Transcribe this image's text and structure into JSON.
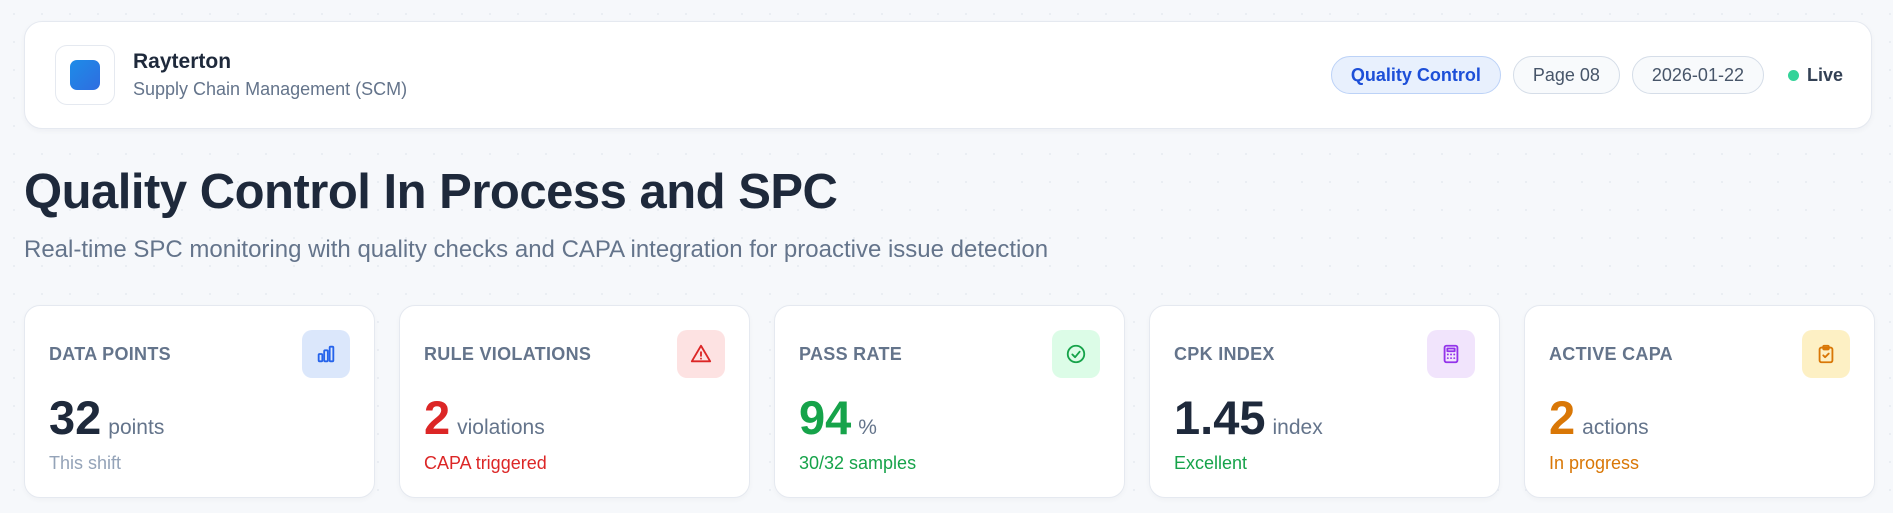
{
  "header": {
    "brand_name": "Rayterton",
    "brand_subtitle": "Supply Chain Management (SCM)",
    "pills": [
      "Quality Control",
      "Page 08",
      "2026-01-22"
    ],
    "live_label": "Live"
  },
  "page": {
    "title": "Quality Control In Process and SPC",
    "subtitle": "Real-time SPC monitoring with quality checks and CAPA integration for proactive issue detection"
  },
  "cards": [
    {
      "label": "DATA POINTS",
      "value": "32",
      "unit": "points",
      "note": "This shift",
      "icon": "bar-chart-icon",
      "value_color": "#1e293b",
      "note_color": "#94a3b8",
      "icon_bg": "#dbe7fb",
      "icon_color": "#2563eb"
    },
    {
      "label": "RULE VIOLATIONS",
      "value": "2",
      "unit": "violations",
      "note": "CAPA triggered",
      "icon": "warning-triangle-icon",
      "value_color": "#dc2626",
      "note_color": "#dc2626",
      "icon_bg": "#fde2e2",
      "icon_color": "#dc2626"
    },
    {
      "label": "PASS RATE",
      "value": "94",
      "unit": "%",
      "note": "30/32 samples",
      "icon": "check-circle-icon",
      "value_color": "#16a34a",
      "note_color": "#16a34a",
      "icon_bg": "#dcfce7",
      "icon_color": "#16a34a"
    },
    {
      "label": "CPK INDEX",
      "value": "1.45",
      "unit": "index",
      "note": "Excellent",
      "icon": "calculator-icon",
      "value_color": "#1e293b",
      "note_color": "#16a34a",
      "icon_bg": "#f1e4fc",
      "icon_color": "#9333ea"
    },
    {
      "label": "ACTIVE CAPA",
      "value": "2",
      "unit": "actions",
      "note": "In progress",
      "icon": "clipboard-check-icon",
      "value_color": "#d97706",
      "note_color": "#d97706",
      "icon_bg": "#fdf0c4",
      "icon_color": "#d97706"
    }
  ]
}
